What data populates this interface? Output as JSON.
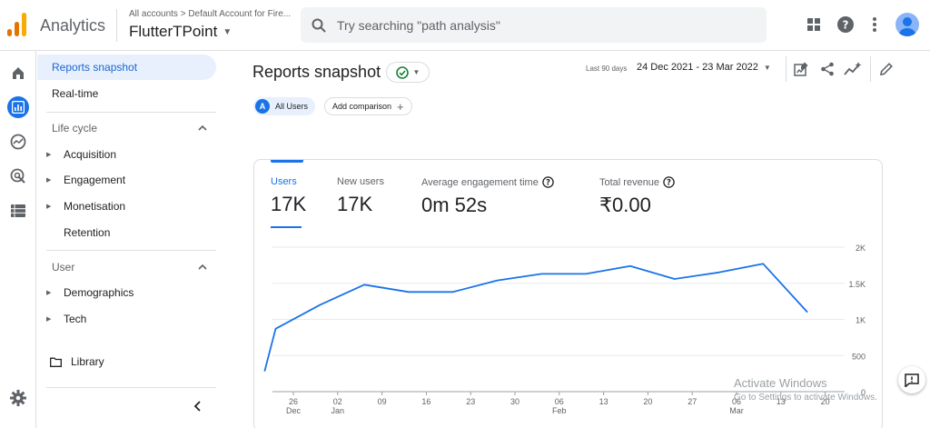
{
  "app": {
    "name": "Analytics"
  },
  "account": {
    "path": "All accounts > Default Account for Fire...",
    "property": "FlutterTPoint"
  },
  "search": {
    "placeholder": "Try searching \"path analysis\""
  },
  "nav": {
    "reports_snapshot": "Reports snapshot",
    "realtime": "Real-time",
    "life_cycle": "Life cycle",
    "life_cycle_items": [
      "Acquisition",
      "Engagement",
      "Monetisation",
      "Retention"
    ],
    "user": "User",
    "user_items": [
      "Demographics",
      "Tech"
    ],
    "library": "Library"
  },
  "page": {
    "title": "Reports snapshot",
    "date_label": "Last 90 days",
    "date_range": "24 Dec 2021 - 23 Mar 2022",
    "all_users": "All Users",
    "all_users_badge": "A",
    "add_comparison": "Add comparison"
  },
  "metrics": [
    {
      "label": "Users",
      "value": "17K"
    },
    {
      "label": "New users",
      "value": "17K"
    },
    {
      "label": "Average engagement time",
      "value": "0m 52s"
    },
    {
      "label": "Total revenue",
      "value": "₹0.00"
    }
  ],
  "chart_data": {
    "type": "line",
    "x_ticks": [
      {
        "day": "26",
        "month": "Dec"
      },
      {
        "day": "02",
        "month": "Jan"
      },
      {
        "day": "09",
        "month": ""
      },
      {
        "day": "16",
        "month": ""
      },
      {
        "day": "23",
        "month": ""
      },
      {
        "day": "30",
        "month": ""
      },
      {
        "day": "06",
        "month": "Feb"
      },
      {
        "day": "13",
        "month": ""
      },
      {
        "day": "20",
        "month": ""
      },
      {
        "day": "27",
        "month": ""
      },
      {
        "day": "06",
        "month": "Mar"
      },
      {
        "day": "13",
        "month": ""
      },
      {
        "day": "20",
        "month": ""
      }
    ],
    "y_ticks": [
      "2K",
      "1.5K",
      "1K",
      "500",
      "0"
    ],
    "ylim": [
      0,
      2000
    ],
    "series": [
      {
        "values": [
          280,
          870,
          1200,
          1480,
          1380,
          1380,
          1540,
          1630,
          1630,
          1740,
          1560,
          1650,
          1770,
          1100
        ],
        "x_pos": [
          -0.65,
          -0.4,
          0.6,
          1.6,
          2.6,
          3.6,
          4.6,
          5.6,
          6.6,
          7.6,
          8.6,
          9.6,
          10.6,
          11.6
        ]
      }
    ],
    "grid": true,
    "colors": {
      "line": "#1a73e8"
    }
  },
  "watermark": {
    "title": "Activate Windows",
    "subtitle": "Go to Settings to activate Windows."
  }
}
